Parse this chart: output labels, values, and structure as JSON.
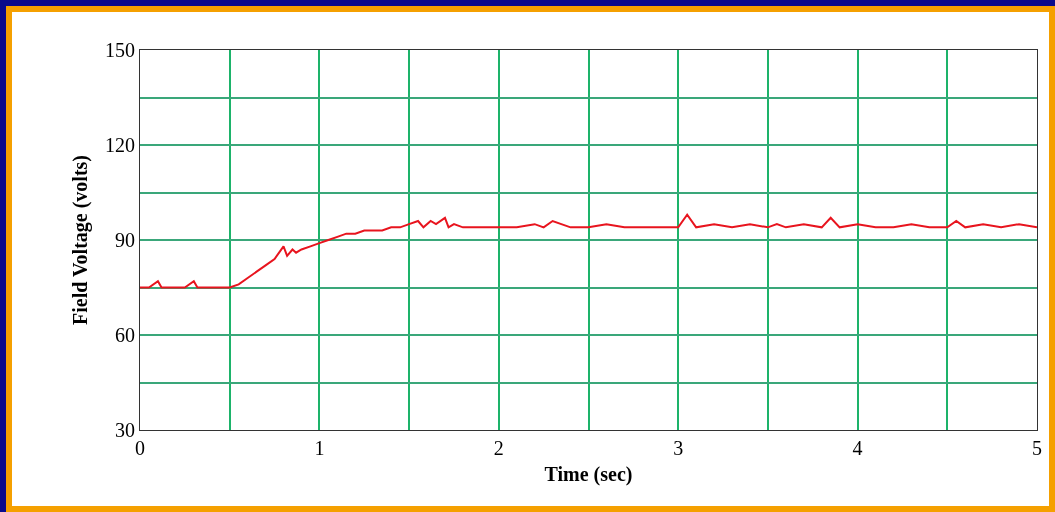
{
  "chart_data": {
    "type": "line",
    "xlabel": "Time (sec)",
    "ylabel": "Field Voltage (volts)",
    "x": [
      0,
      0.05,
      0.1,
      0.12,
      0.15,
      0.2,
      0.25,
      0.3,
      0.32,
      0.35,
      0.4,
      0.45,
      0.5,
      0.55,
      0.6,
      0.65,
      0.7,
      0.75,
      0.8,
      0.82,
      0.85,
      0.87,
      0.9,
      0.95,
      1.0,
      1.05,
      1.1,
      1.15,
      1.2,
      1.25,
      1.3,
      1.35,
      1.4,
      1.45,
      1.5,
      1.55,
      1.58,
      1.62,
      1.65,
      1.7,
      1.72,
      1.75,
      1.8,
      1.9,
      2.0,
      2.1,
      2.2,
      2.25,
      2.3,
      2.4,
      2.5,
      2.6,
      2.7,
      2.8,
      2.9,
      3.0,
      3.05,
      3.1,
      3.2,
      3.3,
      3.4,
      3.5,
      3.55,
      3.6,
      3.7,
      3.8,
      3.85,
      3.9,
      4.0,
      4.1,
      4.2,
      4.3,
      4.4,
      4.5,
      4.55,
      4.6,
      4.7,
      4.8,
      4.9,
      5.0
    ],
    "series": [
      {
        "color": "#e8141e",
        "values": [
          75,
          75,
          77,
          75,
          75,
          75,
          75,
          77,
          75,
          75,
          75,
          75,
          75,
          76,
          78,
          80,
          82,
          84,
          88,
          85,
          87,
          86,
          87,
          88,
          89,
          90,
          91,
          92,
          92,
          93,
          93,
          93,
          94,
          94,
          95,
          96,
          94,
          96,
          95,
          97,
          94,
          95,
          94,
          94,
          94,
          94,
          95,
          94,
          96,
          94,
          94,
          95,
          94,
          94,
          94,
          94,
          98,
          94,
          95,
          94,
          95,
          94,
          95,
          94,
          95,
          94,
          97,
          94,
          95,
          94,
          94,
          95,
          94,
          94,
          96,
          94,
          95,
          94,
          95,
          94
        ]
      }
    ],
    "xlim": [
      0,
      5
    ],
    "ylim": [
      30,
      150
    ],
    "xticks": [
      0,
      {
        "value": 0.5,
        "label": null
      },
      1,
      {
        "value": 1.5,
        "label": null
      },
      2,
      {
        "value": 2.5,
        "label": null
      },
      3,
      {
        "value": 3.5,
        "label": null
      },
      4,
      {
        "value": 4.5,
        "label": null
      },
      5
    ],
    "yticks": [
      30,
      {
        "value": 45,
        "label": null
      },
      60,
      {
        "value": 75,
        "label": null
      },
      90,
      {
        "value": 105,
        "label": null
      },
      120,
      {
        "value": 135,
        "label": null
      },
      150
    ],
    "grid": true,
    "marker": "none",
    "line_style": "solid"
  }
}
